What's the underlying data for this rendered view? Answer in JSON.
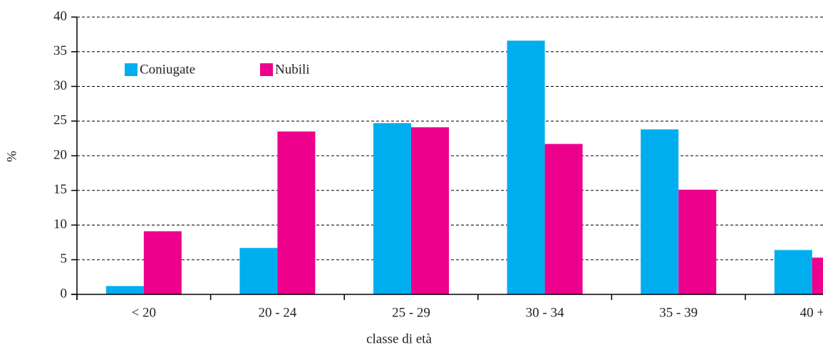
{
  "chart_data": {
    "type": "bar",
    "xlabel": "classe di età",
    "ylabel": "%",
    "categories": [
      "< 20",
      "20 - 24",
      "25 - 29",
      "30 - 34",
      "35 - 39",
      "40 +"
    ],
    "series": [
      {
        "name": "Coniugate",
        "color": "#00aeef",
        "values": [
          1.2,
          6.7,
          24.7,
          36.6,
          23.8,
          6.4
        ]
      },
      {
        "name": "Nubili",
        "color": "#ec008c",
        "values": [
          9.1,
          23.5,
          24.1,
          21.7,
          15.1,
          5.3
        ]
      }
    ],
    "ylim": [
      0,
      40
    ],
    "yticks": [
      0,
      5,
      10,
      15,
      20,
      25,
      30,
      35,
      40
    ],
    "grid": true,
    "legend": "top-left"
  }
}
